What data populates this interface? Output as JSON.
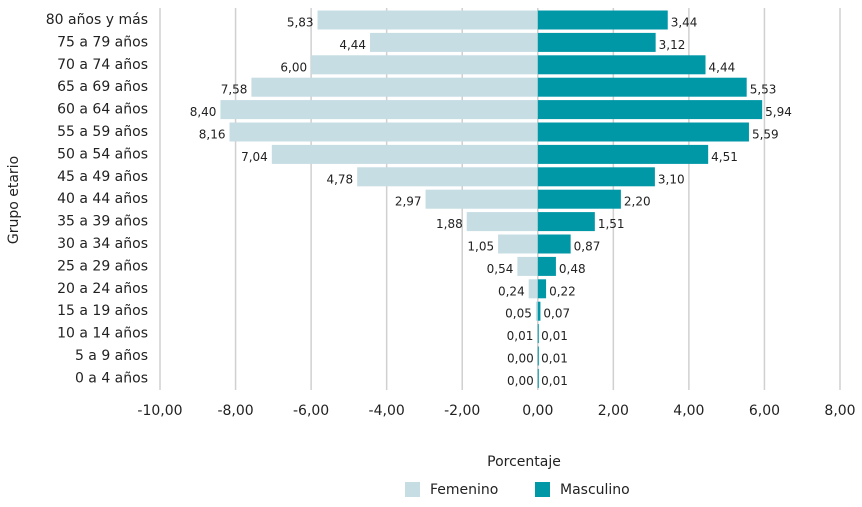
{
  "chart_data": {
    "type": "bar",
    "orientation": "horizontal",
    "x_label": "Porcentaje",
    "y_label": "Grupo etario",
    "categories": [
      "80 años y más",
      "75 a 79 años",
      "70 a 74 años",
      "65 a 69 años",
      "60 a 64 años",
      "55 a 59 años",
      "50 a 54 años",
      "45 a 49 años",
      "40 a 44 años",
      "35 a 39 años",
      "30 a 34 años",
      "25 a 29 años",
      "20 a 24 años",
      "15 a 19 años",
      "10 a 14 años",
      "5 a 9 años",
      "0 a 4 años"
    ],
    "series": [
      {
        "name": "Femenino",
        "color": "#c5dde3",
        "values": [
          -5.83,
          -4.44,
          -6.0,
          -7.58,
          -8.4,
          -8.16,
          -7.04,
          -4.78,
          -2.97,
          -1.88,
          -1.05,
          -0.54,
          -0.24,
          -0.05,
          -0.01,
          0,
          0
        ],
        "value_labels": [
          "5,83",
          "4,44",
          "6,00",
          "7,58",
          "8,40",
          "8,16",
          "7,04",
          "4,78",
          "2,97",
          "1,88",
          "1,05",
          "0,54",
          "0,24",
          "0,05",
          "0,01",
          "0,00",
          "0,00"
        ]
      },
      {
        "name": "Masculino",
        "color": "#0097a7",
        "values": [
          3.44,
          3.12,
          4.44,
          5.53,
          5.94,
          5.59,
          4.51,
          3.1,
          2.2,
          1.51,
          0.87,
          0.48,
          0.22,
          0.07,
          0.01,
          0.01,
          0.01
        ],
        "value_labels": [
          "3,44",
          "3,12",
          "4,44",
          "5,53",
          "5,94",
          "5,59",
          "4,51",
          "3,10",
          "2,20",
          "1,51",
          "0,87",
          "0,48",
          "0,22",
          "0,07",
          "0,01",
          "0,01",
          "0,01"
        ]
      }
    ],
    "xlim": [
      -10,
      8
    ],
    "xticks": [
      {
        "value": -10,
        "label": "-10,00"
      },
      {
        "value": -8,
        "label": "-8,00"
      },
      {
        "value": -6,
        "label": "-6,00"
      },
      {
        "value": -4,
        "label": "-4,00"
      },
      {
        "value": -2,
        "label": "-2,00"
      },
      {
        "value": 0,
        "label": "0,00"
      },
      {
        "value": 2,
        "label": "2,00"
      },
      {
        "value": 4,
        "label": "4,00"
      },
      {
        "value": 6,
        "label": "6,00"
      },
      {
        "value": 8,
        "label": "8,00"
      }
    ],
    "grid": true,
    "legend": "bottom"
  }
}
